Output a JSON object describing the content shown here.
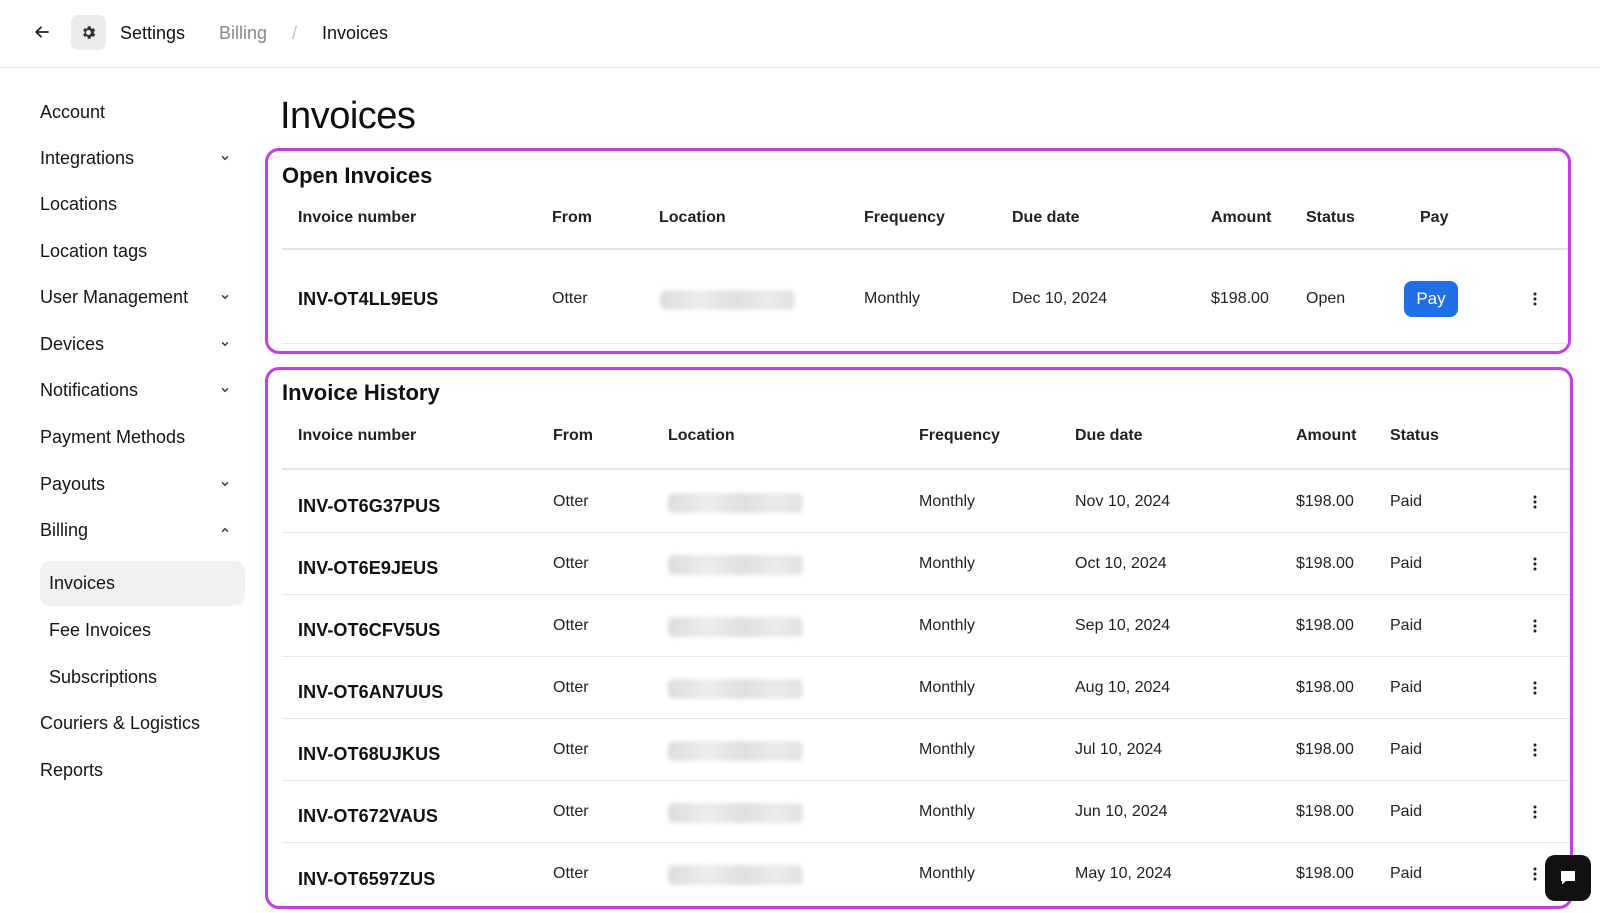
{
  "topbar": {
    "back_icon": "arrow-left-icon",
    "settings_icon": "gear-icon",
    "crumb_settings": "Settings",
    "crumb_billing": "Billing",
    "crumb_separator": "/",
    "crumb_invoices": "Invoices"
  },
  "sidebar": {
    "items": [
      {
        "label": "Account",
        "chevron": "none"
      },
      {
        "label": "Integrations",
        "chevron": "down"
      },
      {
        "label": "Locations",
        "chevron": "none"
      },
      {
        "label": "Location tags",
        "chevron": "none"
      },
      {
        "label": "User Management",
        "chevron": "down"
      },
      {
        "label": "Devices",
        "chevron": "down"
      },
      {
        "label": "Notifications",
        "chevron": "down"
      },
      {
        "label": "Payment Methods",
        "chevron": "none"
      },
      {
        "label": "Payouts",
        "chevron": "down"
      },
      {
        "label": "Billing",
        "chevron": "up"
      }
    ],
    "billing_sub": [
      {
        "label": "Invoices",
        "active": true
      },
      {
        "label": "Fee Invoices",
        "active": false
      },
      {
        "label": "Subscriptions",
        "active": false
      }
    ],
    "after_items": [
      {
        "label": "Couriers & Logistics"
      },
      {
        "label": "Reports"
      }
    ]
  },
  "page": {
    "title": "Invoices"
  },
  "open_invoices": {
    "heading": "Open Invoices",
    "columns": [
      "Invoice number",
      "From",
      "Location",
      "Frequency",
      "Due date",
      "Amount",
      "Status",
      "Pay"
    ],
    "rows": [
      {
        "invoice_number": "INV-OT4LL9EUS",
        "from": "Otter",
        "location": "blurred",
        "frequency": "Monthly",
        "due_date": "Dec 10, 2024",
        "amount": "$198.00",
        "status": "Open",
        "pay_label": "Pay"
      }
    ]
  },
  "invoice_history": {
    "heading": "Invoice History",
    "columns": [
      "Invoice number",
      "From",
      "Location",
      "Frequency",
      "Due date",
      "Amount",
      "Status"
    ],
    "rows": [
      {
        "invoice_number": "INV-OT6G37PUS",
        "from": "Otter",
        "frequency": "Monthly",
        "due_date": "Nov 10, 2024",
        "amount": "$198.00",
        "status": "Paid"
      },
      {
        "invoice_number": "INV-OT6E9JEUS",
        "from": "Otter",
        "frequency": "Monthly",
        "due_date": "Oct 10, 2024",
        "amount": "$198.00",
        "status": "Paid"
      },
      {
        "invoice_number": "INV-OT6CFV5US",
        "from": "Otter",
        "frequency": "Monthly",
        "due_date": "Sep 10, 2024",
        "amount": "$198.00",
        "status": "Paid"
      },
      {
        "invoice_number": "INV-OT6AN7UUS",
        "from": "Otter",
        "frequency": "Monthly",
        "due_date": "Aug 10, 2024",
        "amount": "$198.00",
        "status": "Paid"
      },
      {
        "invoice_number": "INV-OT68UJKUS",
        "from": "Otter",
        "frequency": "Monthly",
        "due_date": "Jul 10, 2024",
        "amount": "$198.00",
        "status": "Paid"
      },
      {
        "invoice_number": "INV-OT672VAUS",
        "from": "Otter",
        "frequency": "Monthly",
        "due_date": "Jun 10, 2024",
        "amount": "$198.00",
        "status": "Paid"
      },
      {
        "invoice_number": "INV-OT6597ZUS",
        "from": "Otter",
        "frequency": "Monthly",
        "due_date": "May 10, 2024",
        "amount": "$198.00",
        "status": "Paid"
      }
    ]
  },
  "colors": {
    "highlight_border": "#c43fe0",
    "pay_button": "#1f6fe5",
    "active_sidebar_bg": "#f1f1f1"
  },
  "chat_icon": "chat-bubble-icon"
}
